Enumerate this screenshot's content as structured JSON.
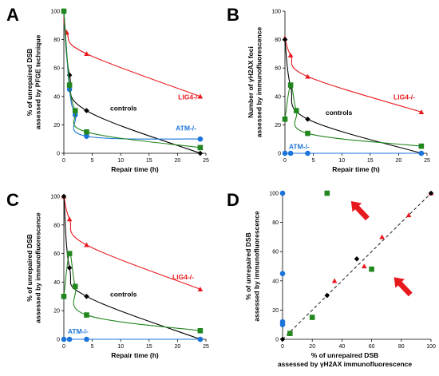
{
  "colors": {
    "lig4": "#e8191e",
    "atm": "#1a74d9",
    "green": "#22871f",
    "controls": "#000000",
    "arrow": "#e8191e"
  },
  "chart_data": [
    {
      "panel": "A",
      "type": "line",
      "ylabel_lines": [
        "% of unrepaired DSB",
        "assessed by PFGE technique"
      ],
      "xlabel": "Repair time (h)",
      "xlim": [
        0,
        25
      ],
      "ylim": [
        0,
        100
      ],
      "xticks": [
        0,
        5,
        10,
        15,
        20,
        25
      ],
      "yticks": [
        0,
        20,
        40,
        60,
        80,
        100
      ],
      "series": [
        {
          "name": "LIG4-/-",
          "color_key": "lig4",
          "marker": "triangle",
          "x": [
            0,
            0.5,
            4,
            24
          ],
          "y": [
            100,
            85,
            70,
            40
          ]
        },
        {
          "name": "controls",
          "color_key": "controls",
          "marker": "diamond",
          "x": [
            0,
            1,
            4,
            24
          ],
          "y": [
            100,
            55,
            30,
            0
          ]
        },
        {
          "name": "ATM-/-",
          "color_key": "atm",
          "marker": "circle",
          "x": [
            0,
            1,
            2,
            4,
            24
          ],
          "y": [
            100,
            45,
            27,
            12,
            10
          ]
        },
        {
          "name": "",
          "color_key": "green",
          "marker": "square",
          "x": [
            0,
            1,
            2,
            4,
            24
          ],
          "y": [
            100,
            48,
            30,
            15,
            4
          ]
        }
      ],
      "annotations": [
        {
          "text": "LIG4-/-",
          "color_key": "lig4",
          "at": [
            22,
            38
          ]
        },
        {
          "text": "controls",
          "color_key": "controls",
          "at": [
            10.5,
            30
          ]
        },
        {
          "text": "ATM-/-",
          "color_key": "atm",
          "at": [
            21.5,
            16
          ]
        }
      ]
    },
    {
      "panel": "B",
      "type": "line",
      "ylabel_lines": [
        "Number of γH2AX foci",
        "assessed by immunofluorescence"
      ],
      "xlabel": "Repair time (h)",
      "xlim": [
        0,
        25
      ],
      "ylim": [
        0,
        100
      ],
      "xticks": [
        0,
        5,
        10,
        15,
        20,
        25
      ],
      "yticks": [
        0,
        20,
        40,
        60,
        80,
        100
      ],
      "series": [
        {
          "name": "LIG4-/-",
          "color_key": "lig4",
          "marker": "triangle",
          "x": [
            0,
            1,
            4,
            24
          ],
          "y": [
            81,
            69,
            54,
            29
          ]
        },
        {
          "name": "controls",
          "color_key": "controls",
          "marker": "diamond",
          "x": [
            0,
            1,
            4,
            24
          ],
          "y": [
            80,
            47,
            24,
            0
          ]
        },
        {
          "name": "ATM-/-",
          "color_key": "atm",
          "marker": "circle",
          "x": [
            0,
            1,
            4,
            24
          ],
          "y": [
            0,
            0,
            0,
            0
          ]
        },
        {
          "name": "",
          "color_key": "green",
          "marker": "square",
          "x": [
            0,
            1,
            2,
            4,
            24
          ],
          "y": [
            24,
            48,
            30,
            14,
            5
          ]
        }
      ],
      "annotations": [
        {
          "text": "LIG4-/-",
          "color_key": "lig4",
          "at": [
            21,
            38
          ]
        },
        {
          "text": "controls",
          "color_key": "controls",
          "at": [
            9.5,
            27
          ]
        },
        {
          "text": "ATM-/-",
          "color_key": "atm",
          "at": [
            2.5,
            3
          ]
        }
      ]
    },
    {
      "panel": "C",
      "type": "line",
      "ylabel_lines": [
        "% of unrepaired DSB",
        "assessed by immunofluorescence"
      ],
      "xlabel": "Repair time (h)",
      "xlim": [
        0,
        25
      ],
      "ylim": [
        0,
        100
      ],
      "xticks": [
        0,
        5,
        10,
        15,
        20,
        25
      ],
      "yticks": [
        0,
        20,
        40,
        60,
        80,
        100
      ],
      "series": [
        {
          "name": "LIG4-/-",
          "color_key": "lig4",
          "marker": "triangle",
          "x": [
            0,
            1,
            4,
            24
          ],
          "y": [
            100,
            84,
            66,
            35
          ]
        },
        {
          "name": "controls",
          "color_key": "controls",
          "marker": "diamond",
          "x": [
            0,
            1,
            4,
            24
          ],
          "y": [
            100,
            50,
            30,
            0
          ]
        },
        {
          "name": "ATM-/-",
          "color_key": "atm",
          "marker": "circle",
          "x": [
            0,
            1,
            4,
            24
          ],
          "y": [
            0,
            0,
            0,
            0
          ]
        },
        {
          "name": "",
          "color_key": "green",
          "marker": "square",
          "x": [
            0,
            1,
            2,
            4,
            24
          ],
          "y": [
            30,
            60,
            37,
            17,
            6
          ]
        }
      ],
      "annotations": [
        {
          "text": "LIG4-/-",
          "color_key": "lig4",
          "at": [
            21,
            42
          ]
        },
        {
          "text": "controls",
          "color_key": "controls",
          "at": [
            10.5,
            30
          ]
        },
        {
          "text": "ATM-/-",
          "color_key": "atm",
          "at": [
            2.5,
            4
          ]
        }
      ]
    },
    {
      "panel": "D",
      "type": "scatter",
      "ylabel_lines": [
        "% of unrepaired DSB",
        "assessed by immunofluorescence"
      ],
      "xlabel_lines": [
        "% of unrepaired DSB",
        "assessed by γH2AX immunofluorescence"
      ],
      "xlim": [
        0,
        100
      ],
      "ylim": [
        0,
        100
      ],
      "xticks": [
        0,
        20,
        40,
        60,
        80,
        100
      ],
      "yticks": [
        0,
        20,
        40,
        60,
        80,
        100
      ],
      "reference_line": {
        "from": [
          0,
          0
        ],
        "to": [
          100,
          100
        ],
        "style": "dashed"
      },
      "series": [
        {
          "name": "LIG4-/-",
          "color_key": "lig4",
          "marker": "triangle",
          "x": [
            35,
            55,
            67,
            85,
            100
          ],
          "y": [
            40,
            50,
            70,
            85,
            100
          ]
        },
        {
          "name": "controls",
          "color_key": "controls",
          "marker": "diamond",
          "x": [
            0,
            30,
            50,
            100
          ],
          "y": [
            0,
            30,
            55,
            100
          ]
        },
        {
          "name": "ATM-/-",
          "color_key": "atm",
          "marker": "circle",
          "x": [
            0,
            0,
            0,
            0
          ],
          "y": [
            100,
            45,
            12,
            10
          ]
        },
        {
          "name": "",
          "color_key": "green",
          "marker": "square",
          "x": [
            5,
            20,
            30,
            60
          ],
          "y": [
            4,
            15,
            100,
            48
          ]
        }
      ],
      "arrows": [
        {
          "pointing_to": [
            30,
            100
          ]
        },
        {
          "pointing_to": [
            60,
            48
          ]
        }
      ]
    }
  ]
}
